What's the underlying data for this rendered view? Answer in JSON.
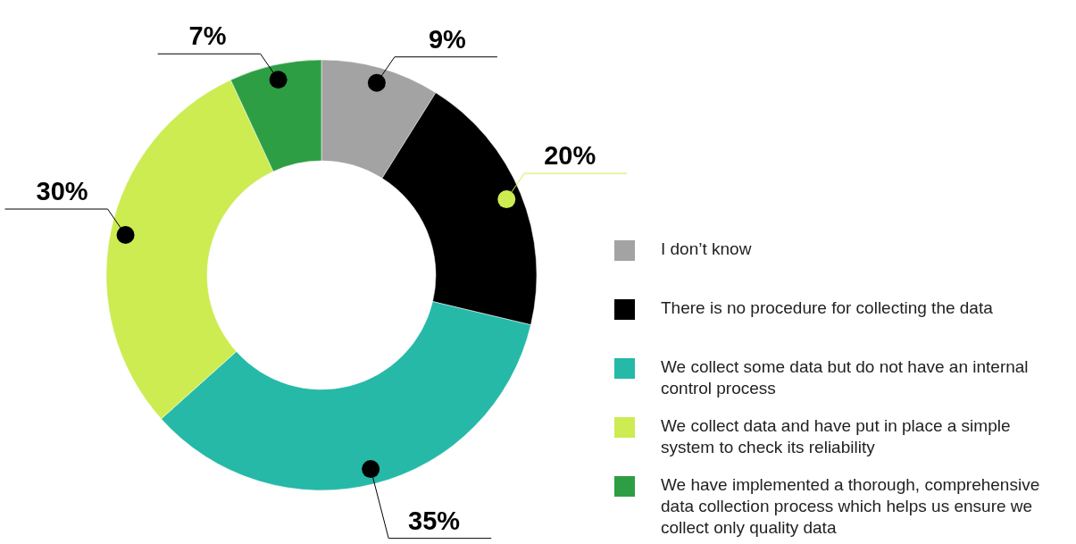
{
  "chart_data": {
    "type": "donut",
    "categories": [
      "I don’t know",
      "There is no procedure for collecting the data",
      "We collect some data but do not have an internal control process",
      "We collect data and have put in place a simple system to check its reliability",
      "We have implemented a thorough, comprehensive data collection process which helps us ensure we collect only quality data"
    ],
    "values": [
      9,
      20,
      35,
      30,
      7
    ],
    "colors": [
      "#a3a3a3",
      "#000000",
      "#26b9a7",
      "#ccec52",
      "#2e9e44"
    ],
    "value_labels": [
      "9%",
      "20%",
      "35%",
      "30%",
      "7%"
    ],
    "legend": "right"
  }
}
